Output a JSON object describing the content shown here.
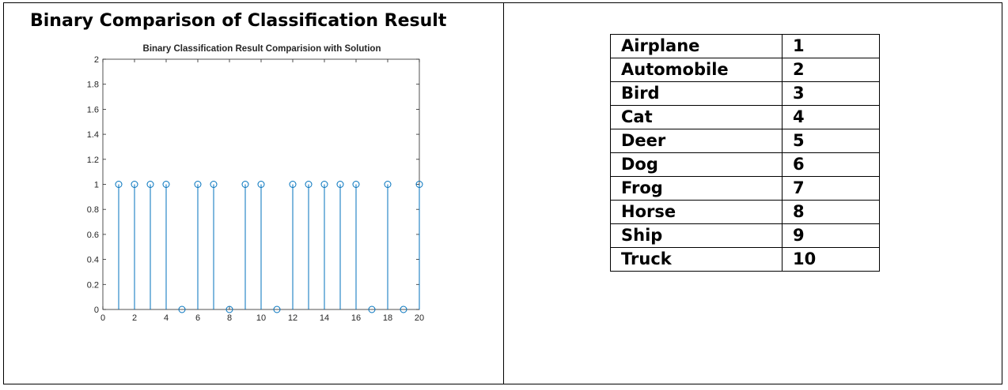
{
  "figure": {
    "heading": "Binary Comparison of Classification Result"
  },
  "chart_data": {
    "type": "stem",
    "title": "Binary Classification Result Comparision with Solution",
    "xlabel": "",
    "ylabel": "",
    "xlim": [
      0,
      20
    ],
    "ylim": [
      0,
      2
    ],
    "x_ticks": [
      0,
      2,
      4,
      6,
      8,
      10,
      12,
      14,
      16,
      18,
      20
    ],
    "y_ticks": [
      0,
      0.2,
      0.4,
      0.6,
      0.8,
      1,
      1.2,
      1.4,
      1.6,
      1.8,
      2
    ],
    "grid": false,
    "x": [
      1,
      2,
      3,
      4,
      5,
      6,
      7,
      8,
      9,
      10,
      11,
      12,
      13,
      14,
      15,
      16,
      17,
      18,
      19,
      20
    ],
    "y": [
      1,
      1,
      1,
      1,
      0,
      1,
      1,
      0,
      1,
      1,
      0,
      1,
      1,
      1,
      1,
      1,
      0,
      1,
      0,
      1
    ],
    "marker": "circle-open",
    "color": "#0072BD"
  },
  "class_table": {
    "rows": [
      {
        "name": "Airplane",
        "id": "1"
      },
      {
        "name": "Automobile",
        "id": "2"
      },
      {
        "name": "Bird",
        "id": "3"
      },
      {
        "name": "Cat",
        "id": "4"
      },
      {
        "name": "Deer",
        "id": "5"
      },
      {
        "name": "Dog",
        "id": "6"
      },
      {
        "name": "Frog",
        "id": "7"
      },
      {
        "name": "Horse",
        "id": "8"
      },
      {
        "name": "Ship",
        "id": "9"
      },
      {
        "name": "Truck",
        "id": "10"
      }
    ]
  }
}
